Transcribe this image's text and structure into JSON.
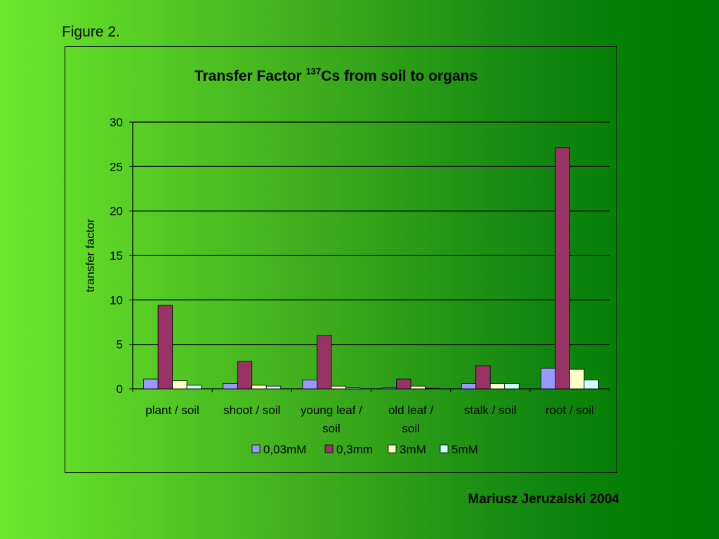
{
  "figure_label": "Figure 2.",
  "author": "Mariusz Jeruzalski 2004",
  "colors": {
    "series": [
      "#9999ff",
      "#993366",
      "#ffffcc",
      "#ccffff"
    ],
    "stroke": "#000000"
  },
  "chart_data": {
    "type": "bar",
    "title_main": "Transfer Factor ",
    "title_sup": "137",
    "title_rest": "Cs from soil to organs",
    "ylabel": "transfer factor",
    "xlabel": "",
    "ylim": [
      0,
      30
    ],
    "yticks": [
      0,
      5,
      10,
      15,
      20,
      25,
      30
    ],
    "grid": true,
    "legend_position": "bottom",
    "categories": [
      [
        "plant / soil"
      ],
      [
        "shoot / soil"
      ],
      [
        "young leaf /",
        "soil"
      ],
      [
        "old leaf /",
        "soil"
      ],
      [
        "stalk / soil"
      ],
      [
        "root / soil"
      ]
    ],
    "series": [
      {
        "name": "0,03mM",
        "values": [
          1.1,
          0.6,
          1.0,
          0.1,
          0.6,
          2.3
        ]
      },
      {
        "name": "0,3mm",
        "values": [
          9.4,
          3.1,
          6.0,
          1.1,
          2.6,
          27.1
        ]
      },
      {
        "name": "3mM",
        "values": [
          0.9,
          0.4,
          0.3,
          0.3,
          0.6,
          2.2
        ]
      },
      {
        "name": "5mM",
        "values": [
          0.4,
          0.3,
          0.1,
          0.0,
          0.6,
          1.0
        ]
      }
    ]
  }
}
